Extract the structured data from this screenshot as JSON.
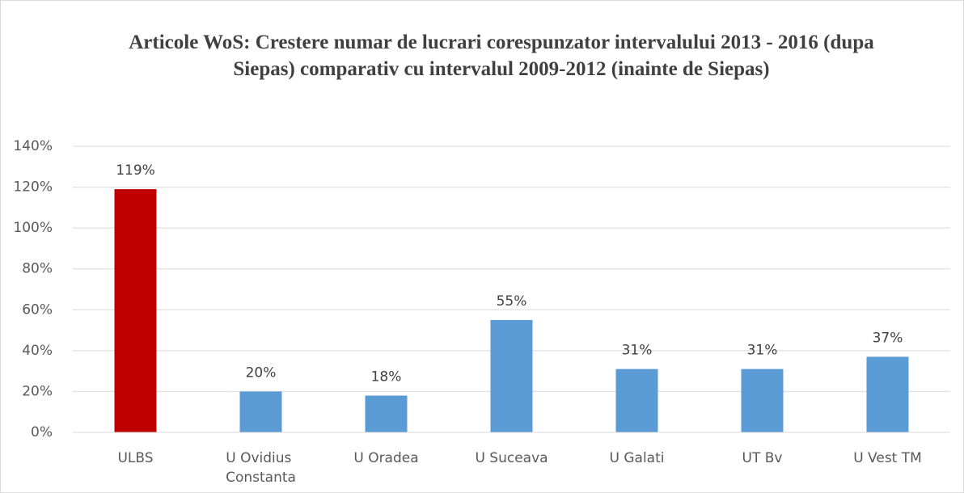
{
  "chart_data": {
    "type": "bar",
    "title": "Articole WoS: Crestere numar de lucrari corespunzator intervalului  2013 - 2016 (dupa Siepas) comparativ cu intervalul 2009-2012 (inainte de Siepas)",
    "categories": [
      "ULBS",
      "U Ovidius Constanta",
      "U Oradea",
      "U Suceava",
      "U Galati",
      "UT Bv",
      "U Vest TM"
    ],
    "values": [
      119,
      20,
      18,
      55,
      31,
      31,
      37
    ],
    "value_labels": [
      "119%",
      "20%",
      "18%",
      "55%",
      "31%",
      "31%",
      "37%"
    ],
    "colors": [
      "#c00000",
      "#5b9bd5",
      "#5b9bd5",
      "#5b9bd5",
      "#5b9bd5",
      "#5b9bd5",
      "#5b9bd5"
    ],
    "ylim": [
      0,
      140
    ],
    "yticks": [
      {
        "value": 0,
        "label": "0%"
      },
      {
        "value": 20,
        "label": "20%"
      },
      {
        "value": 40,
        "label": "40%"
      },
      {
        "value": 60,
        "label": "60%"
      },
      {
        "value": 80,
        "label": "80%"
      },
      {
        "value": 100,
        "label": "100%"
      },
      {
        "value": 120,
        "label": "120%"
      },
      {
        "value": 140,
        "label": "140%"
      }
    ],
    "grid": true
  }
}
